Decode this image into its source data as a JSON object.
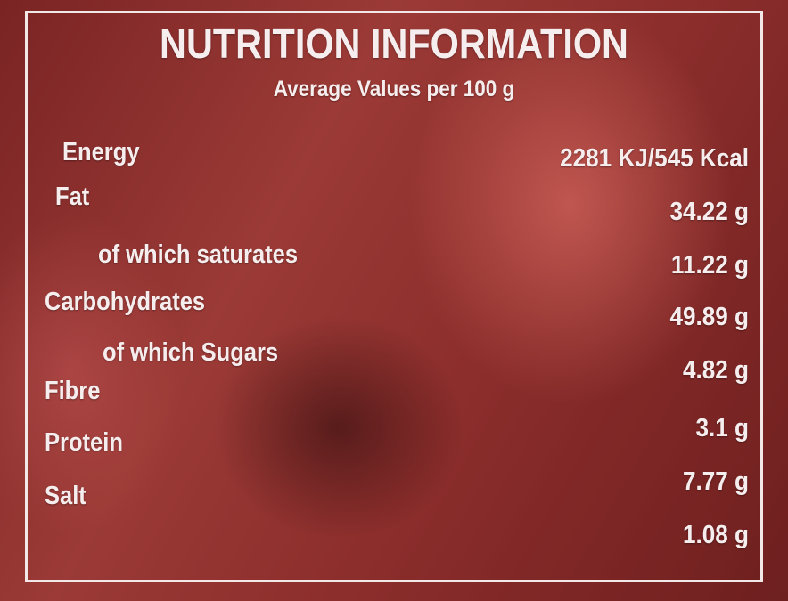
{
  "header": {
    "title": "NUTRITION INFORMATION",
    "subtitle": "Average Values per 100 g"
  },
  "labels": [
    "Energy",
    "Fat",
    "of which saturates",
    "Carbohydrates",
    "of which Sugars",
    "Fibre",
    "Protein",
    "Salt"
  ],
  "values": [
    "2281 KJ/545 Kcal",
    "34.22 g",
    "11.22 g",
    "49.89 g",
    "4.82 g",
    "3.1 g",
    "7.77 g",
    "1.08 g"
  ]
}
